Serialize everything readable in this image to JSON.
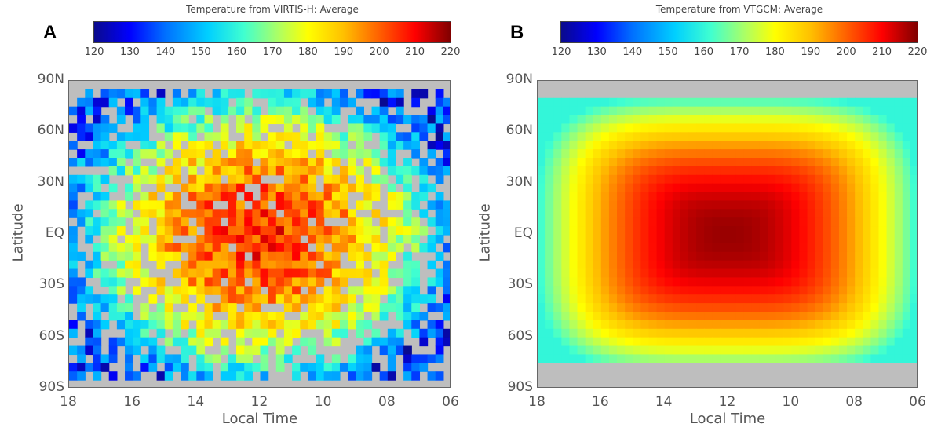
{
  "chart_data": [
    {
      "type": "heatmap",
      "panel_label": "A",
      "title": "Temperature from VIRTIS-H: Average",
      "xlabel": "Local Time",
      "ylabel": "Latitude",
      "x_ticks": [
        "18",
        "16",
        "14",
        "12",
        "10",
        "08",
        "06"
      ],
      "y_ticks": [
        "90N",
        "60N",
        "30N",
        "EQ",
        "30S",
        "60S",
        "90S"
      ],
      "xlim": [
        18,
        6
      ],
      "ylim": [
        -90,
        90
      ],
      "colorbar": {
        "min": 120,
        "max": 220,
        "ticks": [
          "120",
          "130",
          "140",
          "150",
          "160",
          "170",
          "180",
          "190",
          "200",
          "210",
          "220"
        ]
      },
      "field": {
        "peak_value": 205,
        "peak_local_time": 12,
        "peak_latitude": 0,
        "edge_value": 145,
        "noisy": true,
        "lat_coverage": [
          -85,
          85
        ],
        "noise_amplitude": 10
      }
    },
    {
      "type": "heatmap",
      "panel_label": "B",
      "title": "Temperature from VTGCM: Average",
      "xlabel": "Local Time",
      "ylabel": "Latitude",
      "x_ticks": [
        "18",
        "16",
        "14",
        "12",
        "10",
        "08",
        "06"
      ],
      "y_ticks": [
        "90N",
        "60N",
        "30N",
        "EQ",
        "30S",
        "60S",
        "90S"
      ],
      "xlim": [
        18,
        6
      ],
      "ylim": [
        -90,
        90
      ],
      "colorbar": {
        "min": 120,
        "max": 220,
        "ticks": [
          "120",
          "130",
          "140",
          "150",
          "160",
          "170",
          "180",
          "190",
          "200",
          "210",
          "220"
        ]
      },
      "field": {
        "peak_value": 218,
        "peak_local_time": 12,
        "peak_latitude": 0,
        "edge_value": 160,
        "noisy": false,
        "lat_coverage": [
          -75,
          80
        ]
      }
    }
  ]
}
